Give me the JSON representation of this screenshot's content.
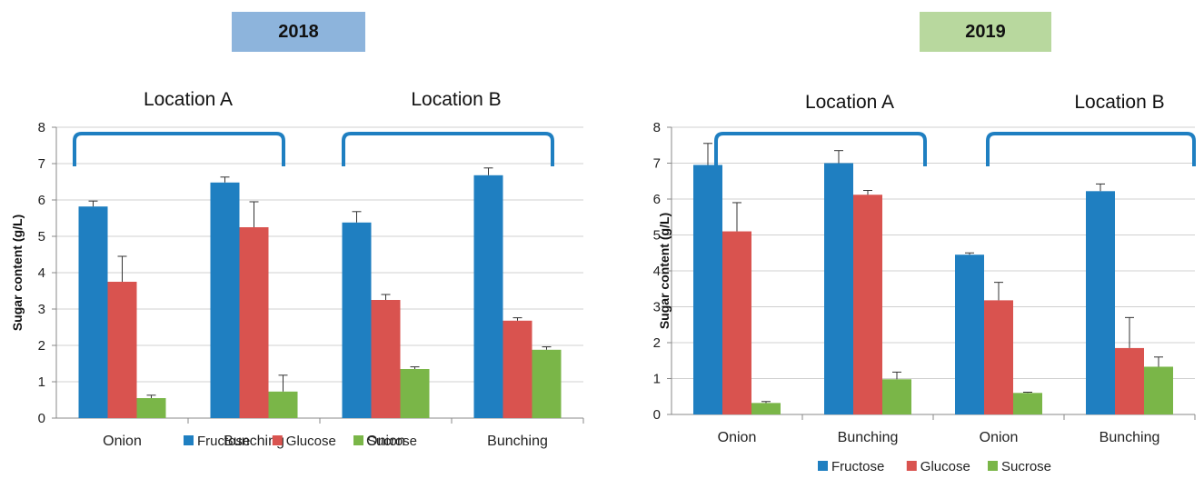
{
  "charts": [
    {
      "badge": {
        "text": "2018",
        "color": "#8db4dc"
      },
      "chart_data": {
        "type": "bar",
        "ylabel": "Sugar content (g/L)",
        "ylim": [
          0,
          8
        ],
        "yticks": [
          "0",
          "1",
          "2",
          "3",
          "4",
          "5",
          "6",
          "7",
          "8"
        ],
        "categories": [
          "Onion",
          "Bunching",
          "Onion",
          "Bunching"
        ],
        "groups": [
          "Location A",
          "Location B"
        ],
        "series": [
          {
            "name": "Fructose",
            "color": "#1f7fc1",
            "values": [
              5.82,
              6.48,
              5.38,
              6.68
            ],
            "errors": [
              0.15,
              0.15,
              0.3,
              0.2
            ]
          },
          {
            "name": "Glucose",
            "color": "#d9534f",
            "values": [
              3.75,
              5.25,
              3.25,
              2.68
            ],
            "errors": [
              0.7,
              0.7,
              0.15,
              0.08
            ]
          },
          {
            "name": "Sucrose",
            "color": "#7ab648",
            "values": [
              0.55,
              0.73,
              1.35,
              1.88
            ],
            "errors": [
              0.08,
              0.45,
              0.06,
              0.08
            ]
          }
        ],
        "legend": "bottom"
      }
    },
    {
      "badge": {
        "text": "2019",
        "color": "#b8d89e"
      },
      "chart_data": {
        "type": "bar",
        "ylabel": "Sugar content (g/L)",
        "ylim": [
          0,
          8
        ],
        "yticks": [
          "0",
          "1",
          "2",
          "3",
          "4",
          "5",
          "6",
          "7",
          "8"
        ],
        "categories": [
          "Onion",
          "Bunching",
          "Onion",
          "Bunching"
        ],
        "groups": [
          "Location A",
          "Location B"
        ],
        "series": [
          {
            "name": "Fructose",
            "color": "#1f7fc1",
            "values": [
              6.95,
              7.0,
              4.45,
              6.22
            ],
            "errors": [
              0.6,
              0.35,
              0.05,
              0.2
            ]
          },
          {
            "name": "Glucose",
            "color": "#d9534f",
            "values": [
              5.1,
              6.12,
              3.18,
              1.85
            ],
            "errors": [
              0.8,
              0.12,
              0.5,
              0.85
            ]
          },
          {
            "name": "Sucrose",
            "color": "#7ab648",
            "values": [
              0.32,
              0.98,
              0.6,
              1.33
            ],
            "errors": [
              0.04,
              0.2,
              0.02,
              0.27
            ]
          }
        ],
        "legend": "bottom"
      }
    }
  ]
}
